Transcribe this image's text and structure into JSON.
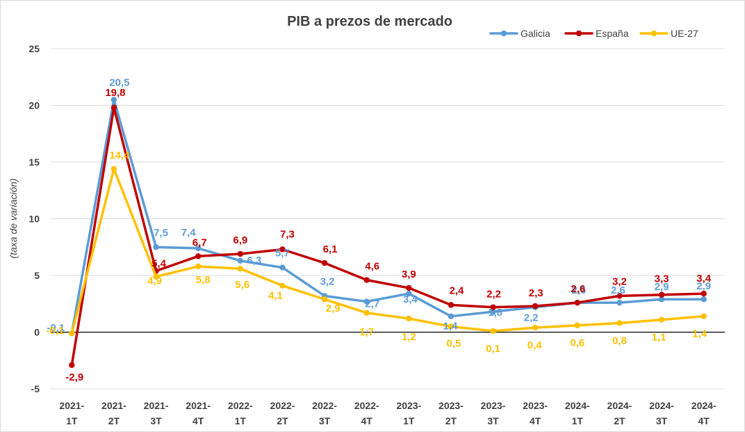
{
  "chart_data": {
    "type": "line",
    "title": "PIB a prezos de mercado",
    "ylabel": "(taxa de variación)",
    "xlabel": "",
    "ylim": [
      -5,
      25
    ],
    "yticks": [
      "-5",
      "0",
      "5",
      "10",
      "15",
      "20",
      "25"
    ],
    "grid": true,
    "legend": "top-right",
    "categories": [
      [
        "2021-",
        "1T"
      ],
      [
        "2021-",
        "2T"
      ],
      [
        "2021-",
        "3T"
      ],
      [
        "2021-",
        "4T"
      ],
      [
        "2022-",
        "1T"
      ],
      [
        "2022-",
        "2T"
      ],
      [
        "2022-",
        "3T"
      ],
      [
        "2022-",
        "4T"
      ],
      [
        "2023-",
        "1T"
      ],
      [
        "2023-",
        "2T"
      ],
      [
        "2023-",
        "3T"
      ],
      [
        "2023-",
        "4T"
      ],
      [
        "2024-",
        "1T"
      ],
      [
        "2024-",
        "2T"
      ],
      [
        "2024-",
        "3T"
      ],
      [
        "2024-",
        "4T"
      ]
    ],
    "series": [
      {
        "name": "Galicia",
        "color": "#5B9BD5",
        "values": [
          -0.1,
          20.5,
          7.5,
          7.4,
          6.3,
          5.7,
          3.2,
          2.7,
          3.4,
          1.4,
          1.8,
          2.2,
          2.6,
          2.6,
          2.9,
          2.9
        ],
        "labels": [
          "-0,1",
          "20,5",
          "7,5",
          "7,4",
          "6,3",
          "5,7",
          "3,2",
          "2,7",
          "3,4",
          "1,4",
          "1,8",
          "2,2",
          "2,6",
          "2,6",
          "2,9",
          "2,9"
        ]
      },
      {
        "name": "España",
        "color": "#C00000",
        "values": [
          -2.9,
          19.8,
          5.4,
          6.7,
          6.9,
          7.3,
          6.1,
          4.6,
          3.9,
          2.4,
          2.2,
          2.3,
          2.6,
          3.2,
          3.3,
          3.4
        ],
        "labels": [
          "-2,9",
          "19,8",
          "5,4",
          "6,7",
          "6,9",
          "7,3",
          "6,1",
          "4,6",
          "3,9",
          "2,4",
          "2,2",
          "2,3",
          "2,6",
          "3,2",
          "3,3",
          "3,4"
        ]
      },
      {
        "name": "UE-27",
        "color": "#FFC000",
        "values": [
          -0.1,
          14.4,
          4.9,
          5.8,
          5.6,
          4.1,
          2.9,
          1.7,
          1.2,
          0.5,
          0.1,
          0.4,
          0.6,
          0.8,
          1.1,
          1.4
        ],
        "labels": [
          "-0,1",
          "14,4",
          "4,9",
          "5,8",
          "5,6",
          "4,1",
          "2,9",
          "1,7",
          "1,2",
          "0,5",
          "0,1",
          "0,4",
          "0,6",
          "0,8",
          "1,1",
          "1,4"
        ]
      }
    ]
  }
}
